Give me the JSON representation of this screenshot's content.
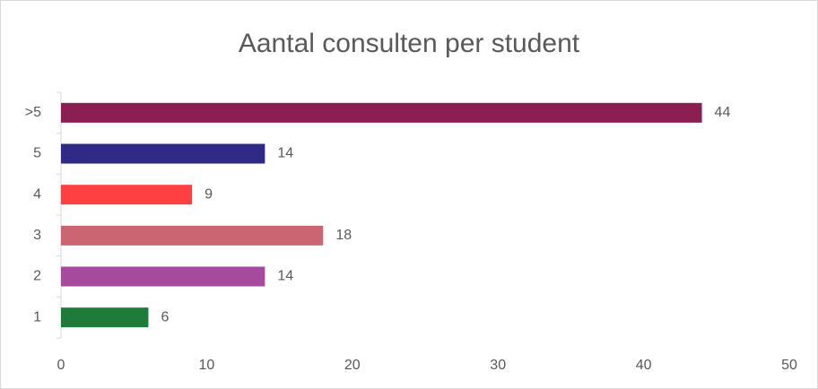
{
  "chart_data": {
    "type": "bar",
    "orientation": "horizontal",
    "title": "Aantal consulten per student",
    "categories": [
      ">5",
      "5",
      "4",
      "3",
      "2",
      "1"
    ],
    "values": [
      44,
      14,
      9,
      18,
      14,
      6
    ],
    "colors": [
      "#8b1f52",
      "#2e2a85",
      "#ff4040",
      "#c96672",
      "#a64a9e",
      "#1e7b3a"
    ],
    "xlim": [
      0,
      50
    ],
    "xticks": [
      0,
      10,
      20,
      30,
      40,
      50
    ],
    "grid": false
  }
}
